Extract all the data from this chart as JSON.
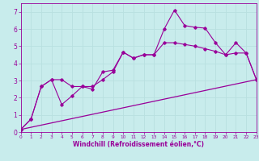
{
  "xlabel": "Windchill (Refroidissement éolien,°C)",
  "bg_color": "#c8ecec",
  "line_color": "#990099",
  "grid_color": "#b8e0e0",
  "xlim": [
    0,
    23
  ],
  "ylim": [
    0,
    7.5
  ],
  "xticks": [
    0,
    1,
    2,
    3,
    4,
    5,
    6,
    7,
    8,
    9,
    10,
    11,
    12,
    13,
    14,
    15,
    16,
    17,
    18,
    19,
    20,
    21,
    22,
    23
  ],
  "yticks": [
    0,
    1,
    2,
    3,
    4,
    5,
    6,
    7
  ],
  "line1_x": [
    0,
    1,
    2,
    3,
    4,
    5,
    6,
    7,
    8,
    9,
    10,
    11,
    12,
    13,
    14,
    15,
    16,
    17,
    18,
    19,
    20,
    21,
    22,
    23
  ],
  "line1_y": [
    0.15,
    0.75,
    2.65,
    3.05,
    1.6,
    2.1,
    2.65,
    2.65,
    3.05,
    3.5,
    4.65,
    4.3,
    4.5,
    4.5,
    6.0,
    7.1,
    6.2,
    6.1,
    6.05,
    5.2,
    4.5,
    4.6,
    4.6,
    3.05
  ],
  "line2_x": [
    0,
    1,
    2,
    3,
    4,
    5,
    6,
    7,
    8,
    9,
    10,
    11,
    12,
    13,
    14,
    15,
    16,
    17,
    18,
    19,
    20,
    21,
    22,
    23
  ],
  "line2_y": [
    0.15,
    0.75,
    2.65,
    3.05,
    3.05,
    2.65,
    2.65,
    2.5,
    3.5,
    3.6,
    4.65,
    4.3,
    4.5,
    4.5,
    5.2,
    5.2,
    5.1,
    5.0,
    4.85,
    4.7,
    4.5,
    5.2,
    4.6,
    3.05
  ],
  "line3_x": [
    0,
    23
  ],
  "line3_y": [
    0.15,
    3.05
  ]
}
